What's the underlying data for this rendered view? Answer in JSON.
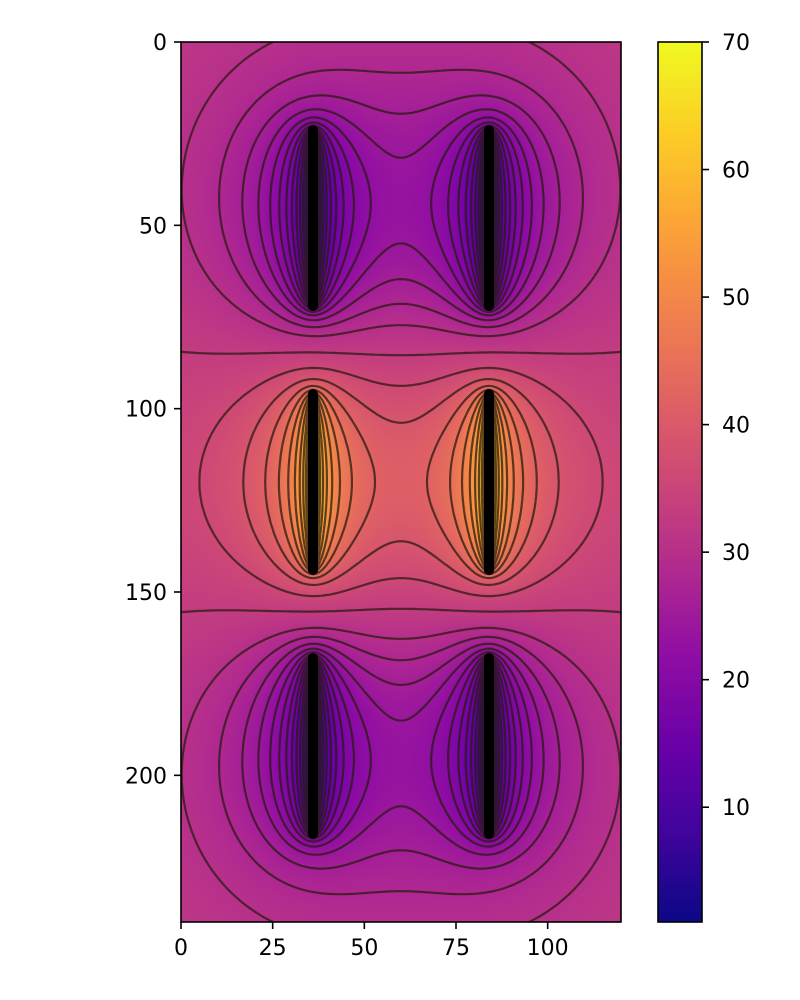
{
  "chart_data": {
    "type": "heatmap",
    "title": "",
    "xlabel": "",
    "ylabel": "",
    "colormap": "plasma",
    "xlim": [
      0,
      120
    ],
    "ylim": [
      240,
      0
    ],
    "x_ticks": [
      0,
      25,
      50,
      75,
      100
    ],
    "y_ticks": [
      0,
      50,
      100,
      150,
      200
    ],
    "colorbar": {
      "range": [
        1,
        70
      ],
      "ticks": [
        10,
        20,
        30,
        40,
        50,
        60,
        70
      ]
    },
    "electrodes": [
      {
        "x": 36,
        "y_start": 24,
        "y_end": 72
      },
      {
        "x": 84,
        "y_start": 24,
        "y_end": 72
      },
      {
        "x": 36,
        "y_start": 96,
        "y_end": 144
      },
      {
        "x": 84,
        "y_start": 96,
        "y_end": 144
      },
      {
        "x": 36,
        "y_start": 168,
        "y_end": 216
      },
      {
        "x": 84,
        "y_start": 168,
        "y_end": 216
      }
    ],
    "contour_levels": [
      4,
      6,
      8,
      10,
      12,
      14,
      16,
      18,
      20,
      22,
      24,
      26,
      28,
      30,
      33,
      36,
      39,
      42,
      45,
      48,
      51,
      54,
      57,
      60,
      63,
      66
    ],
    "peak_value": 70,
    "background_value": 1
  }
}
